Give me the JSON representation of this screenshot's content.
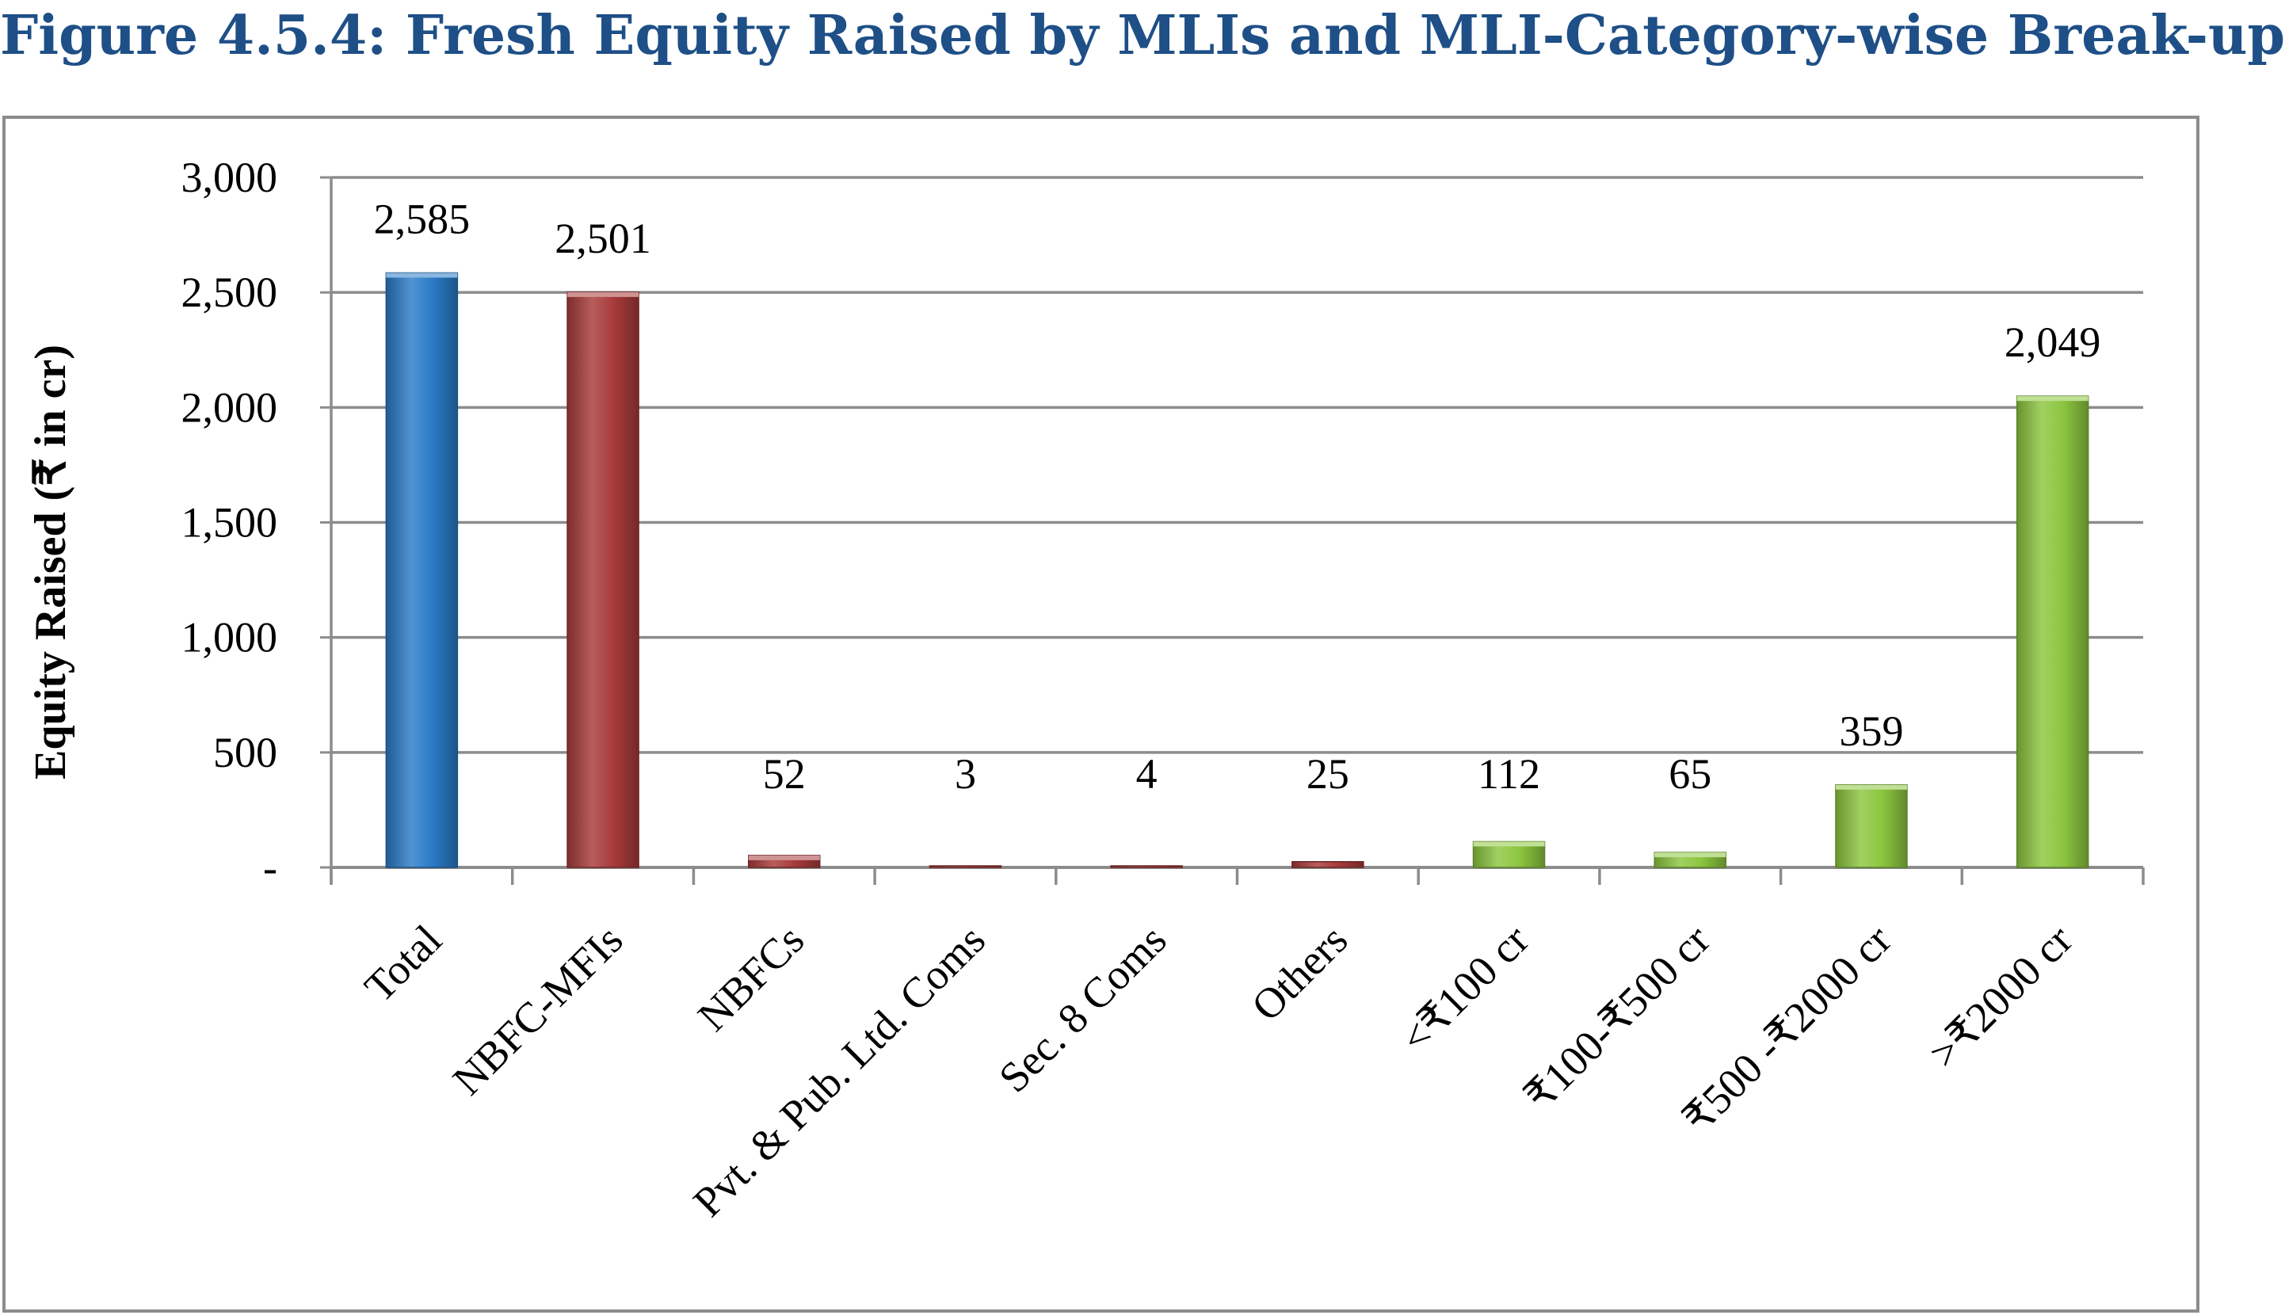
{
  "figure_title": "Figure 4.5.4: Fresh Equity Raised by MLIs and MLI-Category-wise Break-up",
  "colors": {
    "title": "#1e4f87",
    "total": "#2a7bc7",
    "category": "#a83a3a",
    "size": "#8cc63f",
    "grid": "#8c8c8c",
    "frame": "#8c8c8c",
    "text": "#000000"
  },
  "chart_data": {
    "type": "bar",
    "title": "Figure 4.5.4: Fresh Equity Raised by MLIs and MLI-Category-wise Break-up",
    "ylabel": "Equity Raised (₹ in cr)",
    "xlabel": "",
    "ylim": [
      0,
      3000
    ],
    "yticks": [
      {
        "value": 0,
        "label": "-"
      },
      {
        "value": 500,
        "label": "500"
      },
      {
        "value": 1000,
        "label": "1,000"
      },
      {
        "value": 1500,
        "label": "1,500"
      },
      {
        "value": 2000,
        "label": "2,000"
      },
      {
        "value": 2500,
        "label": "2,500"
      },
      {
        "value": 3000,
        "label": "3,000"
      }
    ],
    "grid": true,
    "legend": "none",
    "categories": [
      "Total",
      "NBFC-MFIs",
      "NBFCs",
      "Pvt. & Pub. Ltd. Coms",
      "Sec. 8 Coms",
      "Others",
      "<₹100 cr",
      "₹100-₹500 cr",
      "₹500 -₹2000 cr",
      ">₹2000 cr"
    ],
    "values": [
      2585,
      2501,
      52,
      3,
      4,
      25,
      112,
      65,
      359,
      2049
    ],
    "data_labels": [
      "2,585",
      "2,501",
      "52",
      "3",
      "4",
      "25",
      "112",
      "65",
      "359",
      "2,049"
    ],
    "bar_groups": [
      "total",
      "category",
      "category",
      "category",
      "category",
      "category",
      "size",
      "size",
      "size",
      "size"
    ]
  }
}
